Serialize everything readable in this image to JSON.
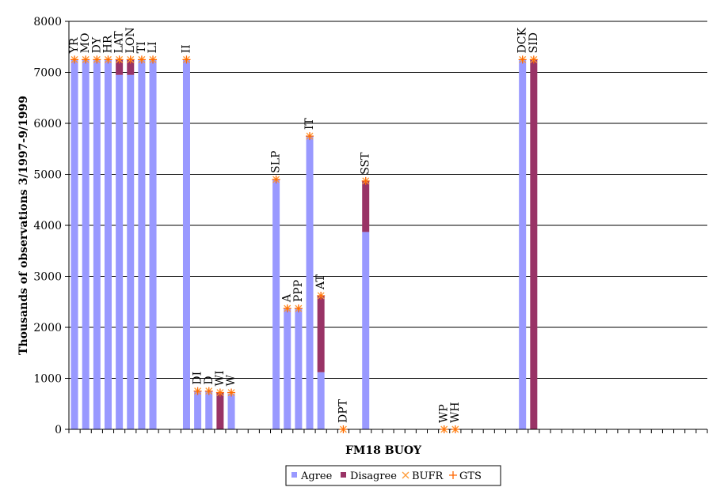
{
  "chart_data": {
    "type": "bar",
    "stacked": true,
    "xlabel": "FM18 BUOY",
    "ylabel": "Thousands of observations 3/1997-9/1999",
    "ylim": [
      0,
      8000
    ],
    "yticks": [
      0,
      1000,
      2000,
      3000,
      4000,
      5000,
      6000,
      7000,
      8000
    ],
    "grid": true,
    "legend_position": "bottom",
    "category_count": 57,
    "series": [
      {
        "name": "Agree",
        "kind": "bar",
        "color": "#9999ff",
        "points": [
          {
            "slot": 0,
            "value": 7250
          },
          {
            "slot": 1,
            "value": 7250
          },
          {
            "slot": 2,
            "value": 7250
          },
          {
            "slot": 3,
            "value": 7250
          },
          {
            "slot": 4,
            "value": 6950
          },
          {
            "slot": 5,
            "value": 6950
          },
          {
            "slot": 6,
            "value": 7250
          },
          {
            "slot": 7,
            "value": 7250
          },
          {
            "slot": 10,
            "value": 7250
          },
          {
            "slot": 11,
            "value": 750
          },
          {
            "slot": 12,
            "value": 750
          },
          {
            "slot": 13,
            "value": 0
          },
          {
            "slot": 14,
            "value": 700
          },
          {
            "slot": 18,
            "value": 4900
          },
          {
            "slot": 19,
            "value": 2370
          },
          {
            "slot": 20,
            "value": 2370
          },
          {
            "slot": 21,
            "value": 5750
          },
          {
            "slot": 22,
            "value": 1120
          },
          {
            "slot": 24,
            "value": 0
          },
          {
            "slot": 26,
            "value": 3870
          },
          {
            "slot": 33,
            "value": 0
          },
          {
            "slot": 34,
            "value": 0
          },
          {
            "slot": 40,
            "value": 7250
          },
          {
            "slot": 41,
            "value": 0
          }
        ]
      },
      {
        "name": "Disagree",
        "kind": "bar",
        "color": "#993366",
        "points": [
          {
            "slot": 4,
            "value": 300
          },
          {
            "slot": 5,
            "value": 300
          },
          {
            "slot": 13,
            "value": 720
          },
          {
            "slot": 22,
            "value": 1500
          },
          {
            "slot": 26,
            "value": 1000
          },
          {
            "slot": 41,
            "value": 7250
          }
        ]
      },
      {
        "name": "BUFR",
        "kind": "marker",
        "marker": "x",
        "color": "#ff9933",
        "points": [
          {
            "slot": 0,
            "value": 7250
          },
          {
            "slot": 1,
            "value": 7250
          },
          {
            "slot": 2,
            "value": 7250
          },
          {
            "slot": 3,
            "value": 7250
          },
          {
            "slot": 4,
            "value": 7250
          },
          {
            "slot": 5,
            "value": 7250
          },
          {
            "slot": 6,
            "value": 7250
          },
          {
            "slot": 7,
            "value": 7250
          },
          {
            "slot": 10,
            "value": 7250
          },
          {
            "slot": 11,
            "value": 750
          },
          {
            "slot": 12,
            "value": 750
          },
          {
            "slot": 13,
            "value": 720
          },
          {
            "slot": 14,
            "value": 720
          },
          {
            "slot": 18,
            "value": 4900
          },
          {
            "slot": 19,
            "value": 2370
          },
          {
            "slot": 20,
            "value": 2370
          },
          {
            "slot": 21,
            "value": 5750
          },
          {
            "slot": 22,
            "value": 2620
          },
          {
            "slot": 24,
            "value": 0
          },
          {
            "slot": 26,
            "value": 4870
          },
          {
            "slot": 33,
            "value": 0
          },
          {
            "slot": 34,
            "value": 0
          },
          {
            "slot": 40,
            "value": 7250
          },
          {
            "slot": 41,
            "value": 7250
          }
        ]
      },
      {
        "name": "GTS",
        "kind": "marker",
        "marker": "+",
        "color": "#ff6600",
        "points": [
          {
            "slot": 0,
            "value": 7250
          },
          {
            "slot": 1,
            "value": 7250
          },
          {
            "slot": 2,
            "value": 7250
          },
          {
            "slot": 3,
            "value": 7250
          },
          {
            "slot": 4,
            "value": 7250
          },
          {
            "slot": 5,
            "value": 7250
          },
          {
            "slot": 6,
            "value": 7250
          },
          {
            "slot": 7,
            "value": 7250
          },
          {
            "slot": 10,
            "value": 7250
          },
          {
            "slot": 11,
            "value": 750
          },
          {
            "slot": 12,
            "value": 750
          },
          {
            "slot": 13,
            "value": 720
          },
          {
            "slot": 14,
            "value": 720
          },
          {
            "slot": 18,
            "value": 4900
          },
          {
            "slot": 19,
            "value": 2370
          },
          {
            "slot": 20,
            "value": 2370
          },
          {
            "slot": 21,
            "value": 5750
          },
          {
            "slot": 22,
            "value": 2620
          },
          {
            "slot": 24,
            "value": 0
          },
          {
            "slot": 26,
            "value": 4870
          },
          {
            "slot": 33,
            "value": 0
          },
          {
            "slot": 34,
            "value": 0
          },
          {
            "slot": 40,
            "value": 7250
          },
          {
            "slot": 41,
            "value": 7250
          }
        ]
      }
    ],
    "annotations": [
      {
        "text": "YR",
        "slot": 0,
        "value": 7250
      },
      {
        "text": "MO",
        "slot": 1,
        "value": 7250
      },
      {
        "text": "DY",
        "slot": 2,
        "value": 7250
      },
      {
        "text": "HR",
        "slot": 3,
        "value": 7250
      },
      {
        "text": "LAT",
        "slot": 4,
        "value": 7250
      },
      {
        "text": "LON",
        "slot": 5,
        "value": 7250
      },
      {
        "text": "TI",
        "slot": 6,
        "value": 7250
      },
      {
        "text": "LI",
        "slot": 7,
        "value": 7250
      },
      {
        "text": "II",
        "slot": 10,
        "value": 7250
      },
      {
        "text": "DI",
        "slot": 11,
        "value": 750
      },
      {
        "text": "D",
        "slot": 12,
        "value": 750
      },
      {
        "text": "WI",
        "slot": 13,
        "value": 720
      },
      {
        "text": "W",
        "slot": 14,
        "value": 720
      },
      {
        "text": "SLP",
        "slot": 18,
        "value": 4900
      },
      {
        "text": "A",
        "slot": 19,
        "value": 2370
      },
      {
        "text": "PPP",
        "slot": 20,
        "value": 2370
      },
      {
        "text": "IT",
        "slot": 21,
        "value": 5750
      },
      {
        "text": "AT",
        "slot": 22,
        "value": 2620
      },
      {
        "text": "DPT",
        "slot": 24,
        "value": 0
      },
      {
        "text": "SST",
        "slot": 26,
        "value": 4870
      },
      {
        "text": "WP",
        "slot": 33,
        "value": 0
      },
      {
        "text": "WH",
        "slot": 34,
        "value": 0
      },
      {
        "text": "DCK",
        "slot": 40,
        "value": 7250
      },
      {
        "text": "SID",
        "slot": 41,
        "value": 7250
      }
    ]
  }
}
